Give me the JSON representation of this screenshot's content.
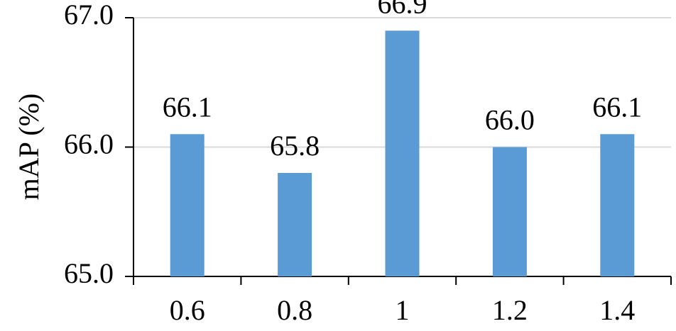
{
  "chart_data": {
    "type": "bar",
    "y_label": "mAP (%)",
    "categories": [
      "0.6",
      "0.8",
      "1",
      "1.2",
      "1.4"
    ],
    "values": [
      66.1,
      65.8,
      66.9,
      66.0,
      66.1
    ],
    "value_labels": [
      "66.1",
      "65.8",
      "66.9",
      "66.0",
      "66.1"
    ],
    "color": "#5b9bd5",
    "ylim": [
      65,
      67
    ],
    "yticks": [
      {
        "value": 65,
        "label": "65.0"
      },
      {
        "value": 66,
        "label": "66.0"
      },
      {
        "value": 67,
        "label": "67.0"
      }
    ],
    "grid": true
  }
}
